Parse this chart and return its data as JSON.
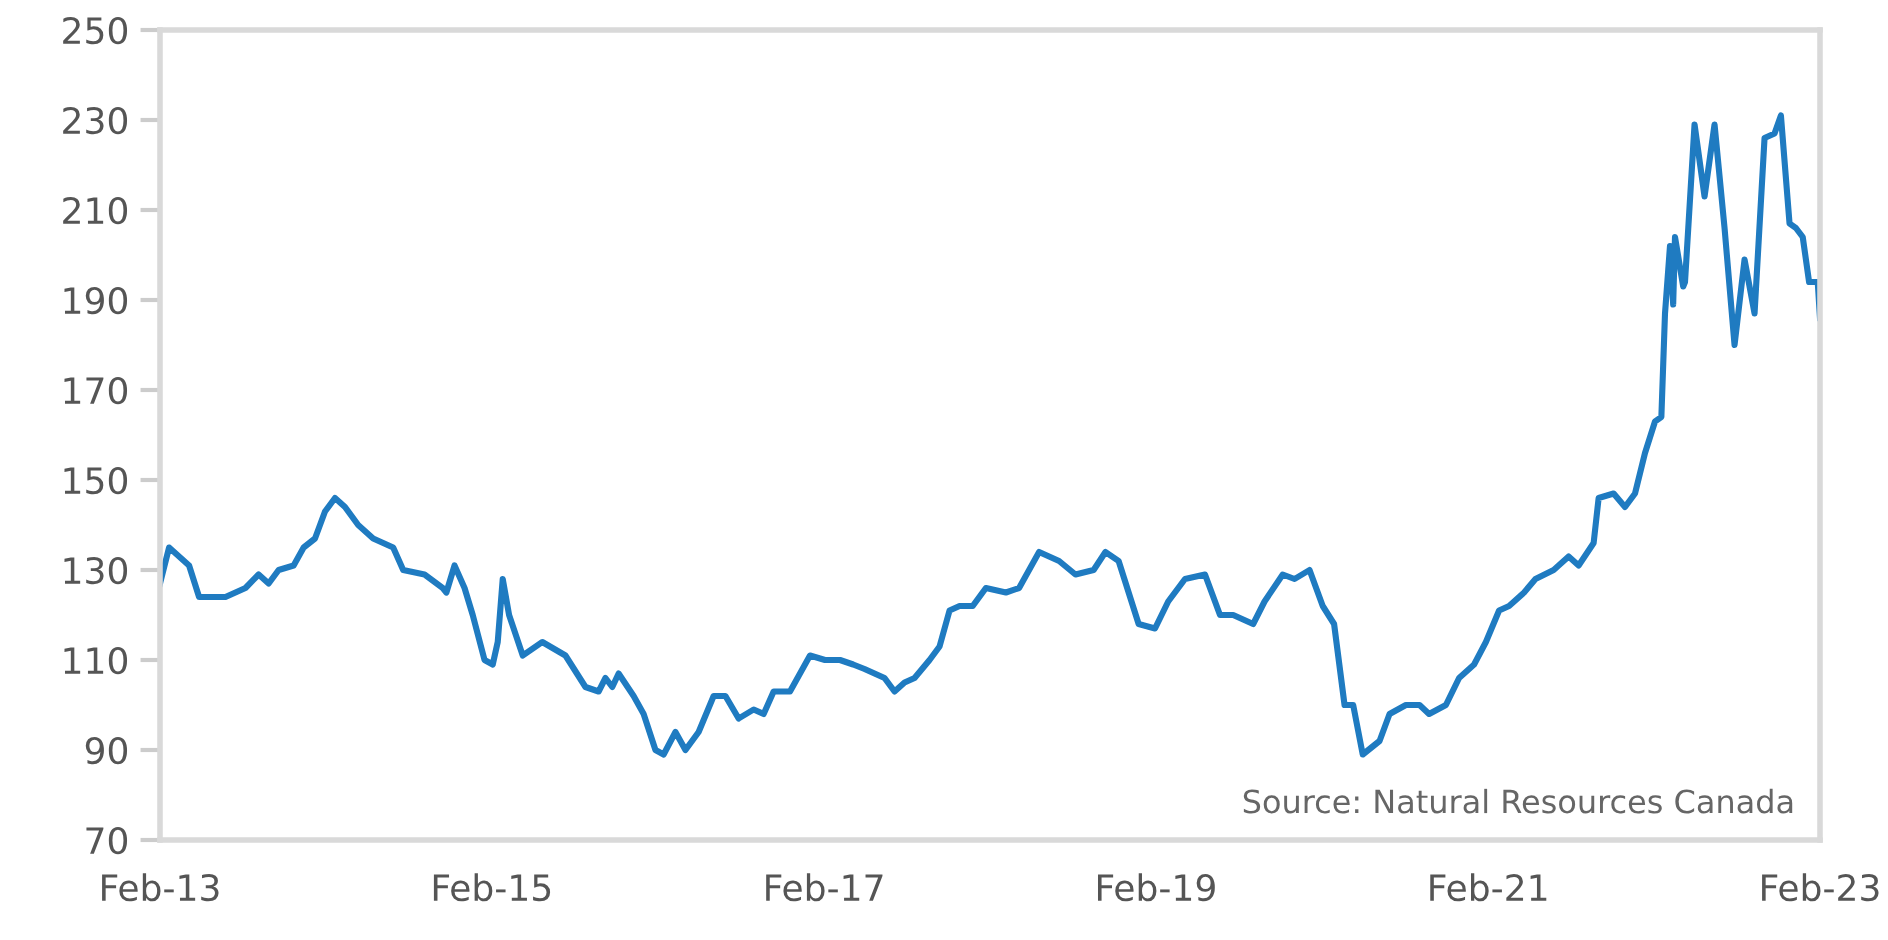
{
  "chart_data": {
    "type": "line",
    "annotations": [
      "Source: Natural Resources Canada"
    ],
    "xlim": [
      "2013-02-01",
      "2023-02-01"
    ],
    "ylim": [
      70,
      250
    ],
    "xticks": [
      {
        "value": "2013-02-01",
        "label": "Feb-13"
      },
      {
        "value": "2015-02-01",
        "label": "Feb-15"
      },
      {
        "value": "2017-02-01",
        "label": "Feb-17"
      },
      {
        "value": "2019-02-01",
        "label": "Feb-19"
      },
      {
        "value": "2021-02-01",
        "label": "Feb-21"
      },
      {
        "value": "2023-02-01",
        "label": "Feb-23"
      }
    ],
    "yticks": [
      70,
      90,
      110,
      130,
      150,
      170,
      190,
      210,
      230,
      250
    ],
    "marker": "none",
    "line_style": "solid",
    "series": [
      {
        "color": "#1f7bc1",
        "x": [
          "2013-02-01",
          "2013-02-21",
          "2013-04-06",
          "2013-04-28",
          "2013-06-25",
          "2013-08-08",
          "2013-09-06",
          "2013-09-28",
          "2013-10-20",
          "2013-11-22",
          "2013-12-14",
          "2014-01-08",
          "2014-01-30",
          "2014-02-21",
          "2014-03-15",
          "2014-04-13",
          "2014-05-16",
          "2014-06-29",
          "2014-07-21",
          "2014-09-06",
          "2014-10-16",
          "2014-10-24",
          "2014-11-11",
          "2014-12-03",
          "2014-12-21",
          "2015-01-16",
          "2015-02-03",
          "2015-02-14",
          "2015-02-25",
          "2015-03-11",
          "2015-04-10",
          "2015-05-23",
          "2015-07-13",
          "2015-08-26",
          "2015-09-24",
          "2015-10-09",
          "2015-10-24",
          "2015-11-07",
          "2015-12-10",
          "2016-01-01",
          "2016-01-27",
          "2016-02-14",
          "2016-03-11",
          "2016-04-02",
          "2016-05-01",
          "2016-06-03",
          "2016-06-29",
          "2016-07-28",
          "2016-08-30",
          "2016-09-21",
          "2016-10-13",
          "2016-11-18",
          "2017-01-01",
          "2017-02-03",
          "2017-03-08",
          "2017-04-06",
          "2017-05-01",
          "2017-06-14",
          "2017-07-06",
          "2017-07-28",
          "2017-08-19",
          "2017-09-21",
          "2017-10-13",
          "2017-11-04",
          "2017-11-26",
          "2017-12-25",
          "2018-01-23",
          "2018-03-08",
          "2018-04-06",
          "2018-05-20",
          "2018-07-03",
          "2018-08-08",
          "2018-09-17",
          "2018-10-13",
          "2018-11-11",
          "2018-12-25",
          "2019-01-30",
          "2019-02-28",
          "2019-04-06",
          "2019-05-20",
          "2019-06-22",
          "2019-07-21",
          "2019-09-03",
          "2019-09-28",
          "2019-11-07",
          "2019-12-03",
          "2020-01-05",
          "2020-02-03",
          "2020-02-28",
          "2020-03-22",
          "2020-04-10",
          "2020-05-01",
          "2020-06-07",
          "2020-06-29",
          "2020-08-04",
          "2020-09-03",
          "2020-09-24",
          "2020-10-31",
          "2020-11-29",
          "2021-01-01",
          "2021-01-27",
          "2021-02-25",
          "2021-03-19",
          "2021-04-21",
          "2021-05-16",
          "2021-06-25",
          "2021-07-28",
          "2021-08-19",
          "2021-09-21",
          "2021-10-02",
          "2021-11-04",
          "2021-11-29",
          "2021-12-21",
          "2022-01-12",
          "2022-02-03",
          "2022-02-17",
          "2022-02-25",
          "2022-03-08",
          "2022-03-15",
          "2022-03-19",
          "2022-04-06",
          "2022-04-10",
          "2022-05-01",
          "2022-05-23",
          "2022-06-14",
          "2022-07-06",
          "2022-07-28",
          "2022-08-19",
          "2022-09-10",
          "2022-10-02",
          "2022-10-24",
          "2022-11-07",
          "2022-11-26",
          "2022-12-10",
          "2022-12-25",
          "2023-01-08",
          "2023-01-27",
          "2023-02-01"
        ],
        "values": [
          127,
          135,
          131,
          124,
          124,
          126,
          129,
          127,
          130,
          131,
          135,
          137,
          143,
          146,
          144,
          140,
          137,
          135,
          130,
          129,
          126,
          125,
          131,
          126,
          120,
          110,
          109,
          114,
          128,
          120,
          111,
          114,
          111,
          104,
          103,
          106,
          104,
          107,
          102,
          98,
          90,
          89,
          94,
          90,
          94,
          102,
          102,
          97,
          99,
          98,
          103,
          103,
          111,
          110,
          110,
          109,
          108,
          106,
          103,
          105,
          106,
          110,
          113,
          121,
          122,
          122,
          126,
          125,
          126,
          134,
          132,
          129,
          130,
          134,
          132,
          118,
          117,
          123,
          128,
          129,
          120,
          120,
          118,
          123,
          129,
          128,
          130,
          122,
          118,
          100,
          100,
          89,
          92,
          98,
          100,
          100,
          98,
          100,
          106,
          109,
          114,
          121,
          122,
          125,
          128,
          130,
          133,
          131,
          136,
          146,
          147,
          144,
          147,
          156,
          163,
          164,
          187,
          202,
          189,
          204,
          193,
          194,
          229,
          213,
          229,
          206,
          180,
          199,
          187,
          226,
          227,
          231,
          207,
          206,
          204,
          194,
          194,
          186
        ]
      }
    ]
  }
}
